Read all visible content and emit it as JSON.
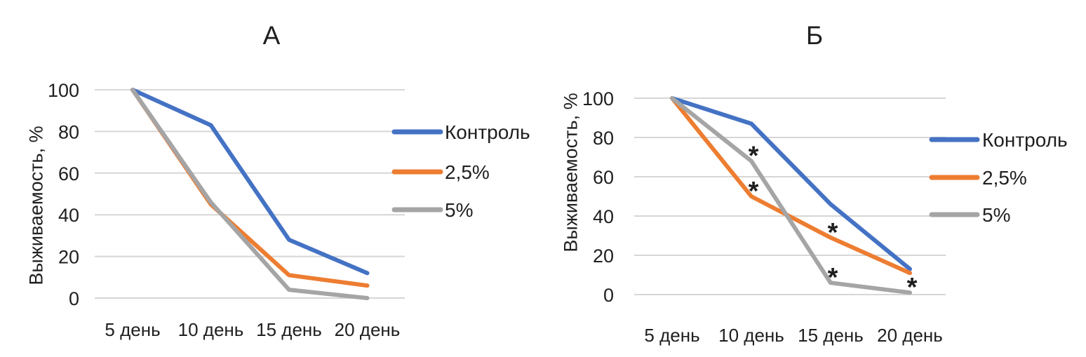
{
  "figure": {
    "background": "#ffffff",
    "text_color": "#1f1f1f",
    "grid_color": "#d6d6d6"
  },
  "chart_data": [
    {
      "id": "A",
      "type": "line",
      "title": "А",
      "ylabel": "Выживаемость, %",
      "xlabel": "",
      "categories": [
        "5 день",
        "10 день",
        "15 день",
        "20 день"
      ],
      "yticks": [
        0,
        20,
        40,
        60,
        80,
        100
      ],
      "ylim": [
        0,
        100
      ],
      "grid": true,
      "legend_position": "right",
      "series": [
        {
          "name": "Контроль",
          "color": "#4472C4",
          "values": [
            100,
            83,
            28,
            12
          ]
        },
        {
          "name": "2,5%",
          "color": "#ED7D31",
          "values": [
            100,
            45,
            11,
            6
          ]
        },
        {
          "name": "5%",
          "color": "#A5A5A5",
          "values": [
            100,
            46,
            4,
            0
          ]
        }
      ],
      "annotations": []
    },
    {
      "id": "Б",
      "type": "line",
      "title": "Б",
      "ylabel": "Выживаемость, %",
      "xlabel": "",
      "categories": [
        "5 день",
        "10 день",
        "15 день",
        "20 день"
      ],
      "yticks": [
        0,
        20,
        40,
        60,
        80,
        100
      ],
      "ylim": [
        0,
        100
      ],
      "grid": true,
      "legend_position": "right",
      "series": [
        {
          "name": "Контроль",
          "color": "#4472C4",
          "values": [
            100,
            87,
            46,
            13
          ]
        },
        {
          "name": "2,5%",
          "color": "#ED7D31",
          "values": [
            100,
            50,
            29,
            11
          ]
        },
        {
          "name": "5%",
          "color": "#A5A5A5",
          "values": [
            100,
            68,
            6,
            1
          ]
        }
      ],
      "annotations": [
        {
          "symbol": "*",
          "series": "5%",
          "category": "10 день",
          "value": 68
        },
        {
          "symbol": "*",
          "series": "2,5%",
          "category": "10 день",
          "value": 50
        },
        {
          "symbol": "*",
          "series": "2,5%",
          "category": "15 день",
          "value": 29
        },
        {
          "symbol": "*",
          "series": "5%",
          "category": "15 день",
          "value": 6
        },
        {
          "symbol": "*",
          "series": "5%",
          "category": "20 день",
          "value": 1
        }
      ]
    }
  ]
}
